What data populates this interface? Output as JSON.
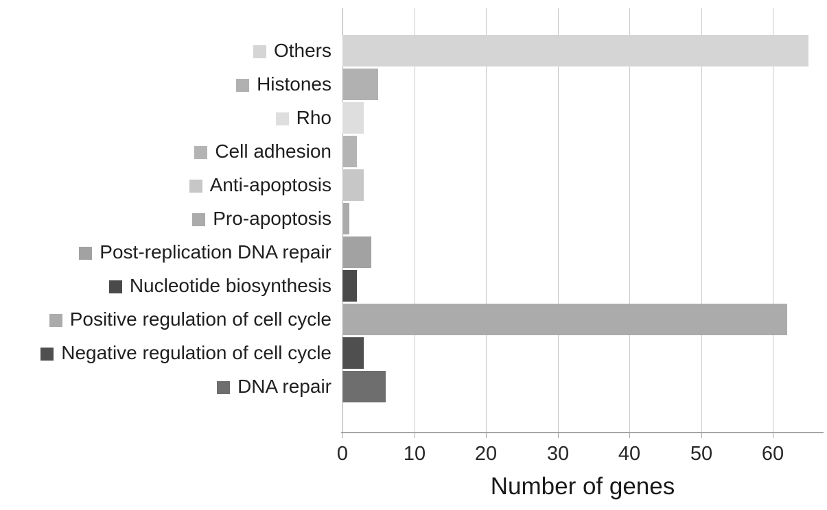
{
  "chart_data": {
    "type": "bar",
    "orientation": "horizontal",
    "categories": [
      "Others",
      "Histones",
      "Rho",
      "Cell adhesion",
      "Anti-apoptosis",
      "Pro-apoptosis",
      "Post-replication DNA repair",
      "Nucleotide biosynthesis",
      "Positive regulation of cell cycle",
      "Negative regulation of cell cycle",
      "DNA repair"
    ],
    "values": [
      65,
      5,
      3,
      2,
      3,
      1,
      4,
      2,
      62,
      3,
      6
    ],
    "bar_colors": [
      "#d5d5d5",
      "#b1b1b1",
      "#dedede",
      "#b4b4b4",
      "#c7c7c7",
      "#ababab",
      "#a2a2a2",
      "#4a4a4a",
      "#ababab",
      "#4f4f4f",
      "#6e6e6e"
    ],
    "xlabel": "Number of genes",
    "x_ticks": [
      0,
      10,
      20,
      30,
      40,
      50,
      60
    ],
    "xlim": [
      0,
      66.5
    ],
    "grid": "vertical-major",
    "legend_style": "inline-swatch-per-category",
    "background": "#ffffff",
    "grid_color": "#c9c9c9",
    "axis_color": "#a6a6a6",
    "text_color": "#1f1f1f"
  }
}
